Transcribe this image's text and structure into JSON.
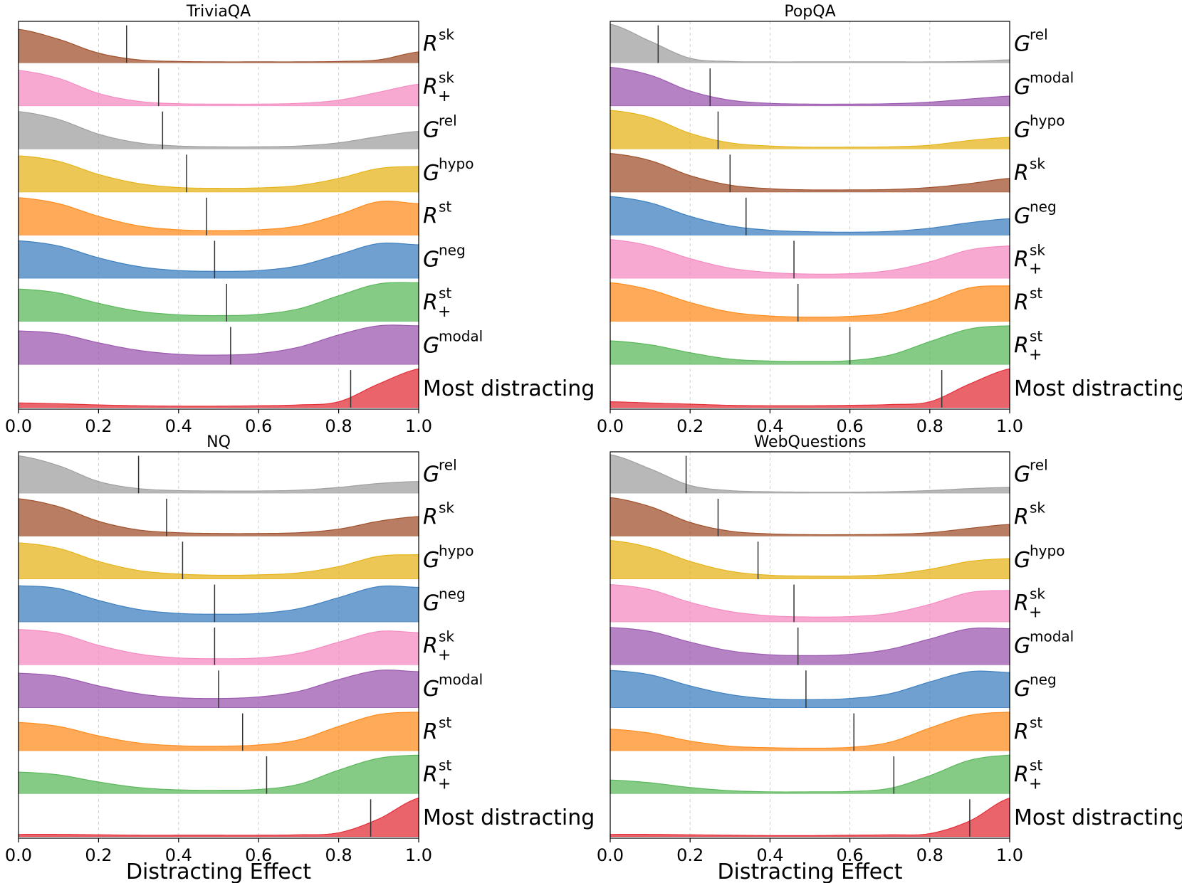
{
  "chart_data": [
    {
      "type": "ridgeline",
      "title": "TriviaQA",
      "xlabel": "",
      "xlim": [
        0,
        1
      ],
      "xticks": [
        "0.0",
        "0.2",
        "0.4",
        "0.6",
        "0.8",
        "1.0"
      ],
      "grid": true,
      "rows": [
        {
          "label_main": "R",
          "label_sup": "sk",
          "label_sub": "",
          "color": "#a0522d",
          "median": 0.27,
          "density": [
            0.85,
            0.6,
            0.25,
            0.08,
            0.04,
            0.03,
            0.03,
            0.03,
            0.04,
            0.08,
            0.28
          ]
        },
        {
          "label_main": "R",
          "label_sup": "sk",
          "label_sub": "+",
          "color": "#f48cc2",
          "median": 0.35,
          "density": [
            0.9,
            0.7,
            0.32,
            0.12,
            0.06,
            0.05,
            0.05,
            0.07,
            0.15,
            0.35,
            0.55
          ]
        },
        {
          "label_main": "G",
          "label_sup": "rel",
          "label_sub": "",
          "color": "#a0a0a0",
          "median": 0.36,
          "density": [
            0.95,
            0.75,
            0.38,
            0.16,
            0.08,
            0.06,
            0.06,
            0.08,
            0.16,
            0.32,
            0.45
          ]
        },
        {
          "label_main": "G",
          "label_sup": "hypo",
          "label_sub": "",
          "color": "#e5b41c",
          "median": 0.42,
          "density": [
            0.92,
            0.78,
            0.45,
            0.22,
            0.12,
            0.1,
            0.11,
            0.17,
            0.35,
            0.6,
            0.65
          ]
        },
        {
          "label_main": "R",
          "label_sup": "st",
          "label_sub": "",
          "color": "#fd8d20",
          "median": 0.47,
          "density": [
            0.95,
            0.8,
            0.48,
            0.24,
            0.14,
            0.12,
            0.14,
            0.24,
            0.52,
            0.85,
            0.8
          ]
        },
        {
          "label_main": "G",
          "label_sup": "neg",
          "label_sub": "",
          "color": "#3f80bf",
          "median": 0.49,
          "density": [
            0.95,
            0.82,
            0.52,
            0.3,
            0.2,
            0.18,
            0.2,
            0.32,
            0.6,
            0.88,
            0.85
          ]
        },
        {
          "label_main": "R",
          "label_sup": "st",
          "label_sub": "+",
          "color": "#5cb85c",
          "median": 0.52,
          "density": [
            0.82,
            0.72,
            0.46,
            0.26,
            0.17,
            0.15,
            0.18,
            0.32,
            0.65,
            0.95,
            0.98
          ]
        },
        {
          "label_main": "G",
          "label_sup": "modal",
          "label_sub": "",
          "color": "#9c59b0",
          "median": 0.53,
          "density": [
            0.85,
            0.78,
            0.55,
            0.36,
            0.26,
            0.24,
            0.28,
            0.44,
            0.75,
            0.98,
            0.98
          ]
        },
        {
          "label_main": "Most distracting",
          "label_sup": "",
          "label_sub": "",
          "color": "#e3303a",
          "median": 0.83,
          "density": [
            0.12,
            0.1,
            0.07,
            0.05,
            0.04,
            0.04,
            0.05,
            0.07,
            0.15,
            0.6,
            0.98
          ]
        }
      ]
    },
    {
      "type": "ridgeline",
      "title": "PopQA",
      "xlabel": "",
      "xlim": [
        0,
        1
      ],
      "xticks": [
        "0.0",
        "0.2",
        "0.4",
        "0.6",
        "0.8",
        "1.0"
      ],
      "grid": true,
      "rows": [
        {
          "label_main": "G",
          "label_sup": "rel",
          "label_sub": "",
          "color": "#a0a0a0",
          "median": 0.12,
          "density": [
            0.98,
            0.55,
            0.12,
            0.04,
            0.03,
            0.03,
            0.03,
            0.03,
            0.03,
            0.04,
            0.08
          ]
        },
        {
          "label_main": "G",
          "label_sup": "modal",
          "label_sub": "",
          "color": "#9c59b0",
          "median": 0.25,
          "density": [
            0.98,
            0.78,
            0.38,
            0.15,
            0.07,
            0.05,
            0.05,
            0.06,
            0.1,
            0.18,
            0.25
          ]
        },
        {
          "label_main": "G",
          "label_sup": "hypo",
          "label_sub": "",
          "color": "#e5b41c",
          "median": 0.27,
          "density": [
            0.98,
            0.8,
            0.4,
            0.16,
            0.08,
            0.05,
            0.05,
            0.06,
            0.1,
            0.22,
            0.3
          ]
        },
        {
          "label_main": "R",
          "label_sup": "sk",
          "label_sub": "",
          "color": "#a0522d",
          "median": 0.3,
          "density": [
            0.98,
            0.8,
            0.42,
            0.18,
            0.09,
            0.06,
            0.06,
            0.07,
            0.12,
            0.22,
            0.35
          ]
        },
        {
          "label_main": "G",
          "label_sup": "neg",
          "label_sub": "",
          "color": "#3f80bf",
          "median": 0.34,
          "density": [
            0.98,
            0.82,
            0.48,
            0.24,
            0.13,
            0.09,
            0.08,
            0.1,
            0.18,
            0.32,
            0.42
          ]
        },
        {
          "label_main": "R",
          "label_sup": "sk",
          "label_sub": "+",
          "color": "#f48cc2",
          "median": 0.46,
          "density": [
            0.98,
            0.82,
            0.5,
            0.26,
            0.15,
            0.11,
            0.12,
            0.2,
            0.42,
            0.72,
            0.82
          ]
        },
        {
          "label_main": "R",
          "label_sup": "st",
          "label_sub": "",
          "color": "#fd8d20",
          "median": 0.47,
          "density": [
            0.98,
            0.8,
            0.48,
            0.24,
            0.14,
            0.11,
            0.13,
            0.22,
            0.5,
            0.85,
            0.9
          ]
        },
        {
          "label_main": "R",
          "label_sup": "st",
          "label_sub": "+",
          "color": "#5cb85c",
          "median": 0.6,
          "density": [
            0.6,
            0.5,
            0.3,
            0.14,
            0.09,
            0.08,
            0.1,
            0.24,
            0.58,
            0.9,
            0.98
          ]
        },
        {
          "label_main": "Most distracting",
          "label_sup": "",
          "label_sub": "",
          "color": "#e3303a",
          "median": 0.83,
          "density": [
            0.15,
            0.12,
            0.09,
            0.06,
            0.05,
            0.05,
            0.06,
            0.08,
            0.15,
            0.6,
            0.98
          ]
        }
      ]
    },
    {
      "type": "ridgeline",
      "title": "NQ",
      "xlabel": "Distracting Effect",
      "xlim": [
        0,
        1
      ],
      "xticks": [
        "0.0",
        "0.2",
        "0.4",
        "0.6",
        "0.8",
        "1.0"
      ],
      "grid": true,
      "rows": [
        {
          "label_main": "G",
          "label_sup": "rel",
          "label_sub": "",
          "color": "#a0a0a0",
          "median": 0.3,
          "density": [
            0.95,
            0.7,
            0.3,
            0.12,
            0.07,
            0.06,
            0.06,
            0.08,
            0.15,
            0.25,
            0.3
          ]
        },
        {
          "label_main": "R",
          "label_sup": "sk",
          "label_sub": "",
          "color": "#a0522d",
          "median": 0.37,
          "density": [
            0.95,
            0.75,
            0.38,
            0.16,
            0.09,
            0.07,
            0.07,
            0.09,
            0.18,
            0.38,
            0.5
          ]
        },
        {
          "label_main": "G",
          "label_sup": "hypo",
          "label_sub": "",
          "color": "#e5b41c",
          "median": 0.41,
          "density": [
            0.92,
            0.78,
            0.45,
            0.22,
            0.13,
            0.1,
            0.11,
            0.16,
            0.32,
            0.58,
            0.62
          ]
        },
        {
          "label_main": "G",
          "label_sup": "neg",
          "label_sub": "",
          "color": "#3f80bf",
          "median": 0.49,
          "density": [
            0.92,
            0.85,
            0.55,
            0.32,
            0.22,
            0.2,
            0.22,
            0.34,
            0.62,
            0.9,
            0.88
          ]
        },
        {
          "label_main": "R",
          "label_sup": "sk",
          "label_sub": "+",
          "color": "#f48cc2",
          "median": 0.49,
          "density": [
            0.9,
            0.8,
            0.5,
            0.28,
            0.18,
            0.16,
            0.18,
            0.3,
            0.58,
            0.85,
            0.82
          ]
        },
        {
          "label_main": "G",
          "label_sup": "modal",
          "label_sub": "",
          "color": "#9c59b0",
          "median": 0.5,
          "density": [
            0.88,
            0.8,
            0.56,
            0.36,
            0.26,
            0.24,
            0.28,
            0.42,
            0.72,
            0.95,
            0.92
          ]
        },
        {
          "label_main": "R",
          "label_sup": "st",
          "label_sub": "",
          "color": "#fd8d20",
          "median": 0.56,
          "density": [
            0.72,
            0.62,
            0.38,
            0.2,
            0.13,
            0.12,
            0.15,
            0.28,
            0.62,
            0.92,
            0.98
          ]
        },
        {
          "label_main": "R",
          "label_sup": "st",
          "label_sub": "+",
          "color": "#5cb85c",
          "median": 0.62,
          "density": [
            0.55,
            0.48,
            0.3,
            0.16,
            0.1,
            0.09,
            0.11,
            0.24,
            0.6,
            0.9,
            0.98
          ]
        },
        {
          "label_main": "Most distracting",
          "label_sup": "",
          "label_sub": "",
          "color": "#e3303a",
          "median": 0.88,
          "density": [
            0.06,
            0.06,
            0.05,
            0.04,
            0.04,
            0.04,
            0.04,
            0.05,
            0.1,
            0.45,
            0.98
          ]
        }
      ]
    },
    {
      "type": "ridgeline",
      "title": "WebQuestions",
      "xlabel": "Distracting Effect",
      "xlim": [
        0,
        1
      ],
      "xticks": [
        "0.0",
        "0.2",
        "0.4",
        "0.6",
        "0.8",
        "1.0"
      ],
      "grid": true,
      "rows": [
        {
          "label_main": "G",
          "label_sup": "rel",
          "label_sub": "",
          "color": "#a0a0a0",
          "median": 0.19,
          "density": [
            0.98,
            0.62,
            0.2,
            0.07,
            0.04,
            0.03,
            0.03,
            0.04,
            0.07,
            0.12,
            0.15
          ]
        },
        {
          "label_main": "R",
          "label_sup": "sk",
          "label_sub": "",
          "color": "#a0522d",
          "median": 0.27,
          "density": [
            0.98,
            0.75,
            0.35,
            0.13,
            0.06,
            0.04,
            0.04,
            0.05,
            0.09,
            0.2,
            0.3
          ]
        },
        {
          "label_main": "G",
          "label_sup": "hypo",
          "label_sub": "",
          "color": "#e5b41c",
          "median": 0.37,
          "density": [
            0.98,
            0.8,
            0.45,
            0.2,
            0.1,
            0.08,
            0.08,
            0.12,
            0.25,
            0.45,
            0.52
          ]
        },
        {
          "label_main": "R",
          "label_sup": "sk",
          "label_sub": "+",
          "color": "#f48cc2",
          "median": 0.46,
          "density": [
            0.95,
            0.82,
            0.5,
            0.27,
            0.16,
            0.13,
            0.14,
            0.22,
            0.45,
            0.75,
            0.8
          ]
        },
        {
          "label_main": "G",
          "label_sup": "modal",
          "label_sub": "",
          "color": "#9c59b0",
          "median": 0.47,
          "density": [
            0.95,
            0.85,
            0.58,
            0.36,
            0.26,
            0.24,
            0.27,
            0.4,
            0.66,
            0.92,
            0.92
          ]
        },
        {
          "label_main": "G",
          "label_sup": "neg",
          "label_sub": "",
          "color": "#3f80bf",
          "median": 0.49,
          "density": [
            0.95,
            0.84,
            0.56,
            0.34,
            0.23,
            0.21,
            0.24,
            0.36,
            0.66,
            0.92,
            0.9
          ]
        },
        {
          "label_main": "R",
          "label_sup": "st",
          "label_sub": "",
          "color": "#fd8d20",
          "median": 0.61,
          "density": [
            0.55,
            0.45,
            0.25,
            0.12,
            0.08,
            0.07,
            0.09,
            0.22,
            0.58,
            0.9,
            0.98
          ]
        },
        {
          "label_main": "R",
          "label_sup": "st",
          "label_sub": "+",
          "color": "#5cb85c",
          "median": 0.71,
          "density": [
            0.35,
            0.28,
            0.16,
            0.08,
            0.05,
            0.05,
            0.06,
            0.14,
            0.46,
            0.85,
            0.98
          ]
        },
        {
          "label_main": "Most distracting",
          "label_sup": "",
          "label_sub": "",
          "color": "#e3303a",
          "median": 0.9,
          "density": [
            0.06,
            0.06,
            0.05,
            0.04,
            0.03,
            0.03,
            0.04,
            0.05,
            0.08,
            0.4,
            0.98
          ]
        }
      ]
    }
  ]
}
